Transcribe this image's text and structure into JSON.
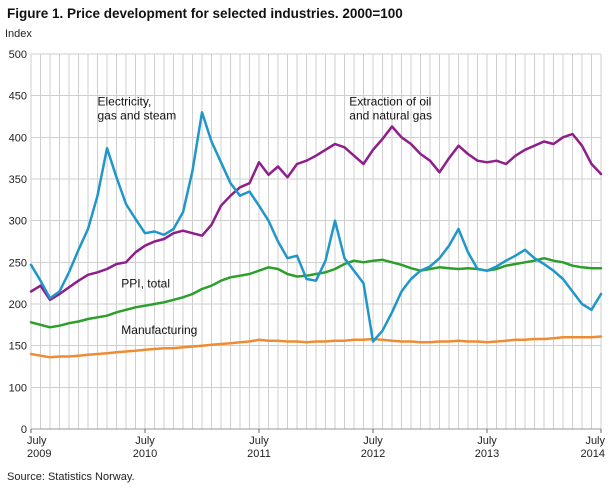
{
  "figure": {
    "title": "Figure 1. Price development for selected industries. 2000=100",
    "source": "Source: Statistics Norway."
  },
  "chart_data": {
    "type": "line",
    "title": "Figure 1. Price development for selected industries. 2000=100",
    "ylabel": "Index",
    "xlabel": "",
    "x_frequency": "monthly",
    "x_range": [
      "July 2009",
      "July 2014"
    ],
    "y_ticks": [
      500,
      450,
      400,
      350,
      300,
      250,
      200,
      150,
      100,
      0
    ],
    "y_axis_break_between": [
      0,
      100
    ],
    "grid": true,
    "legend_position": "inline-annotations",
    "x_tick_months": [
      0,
      12,
      24,
      36,
      48,
      60
    ],
    "x_ticks": [
      {
        "line1": "July",
        "line2": "2009"
      },
      {
        "line1": "July",
        "line2": "2010"
      },
      {
        "line1": "July",
        "line2": "2011"
      },
      {
        "line1": "July",
        "line2": "2012"
      },
      {
        "line1": "July",
        "line2": "2013"
      },
      {
        "line1": "July",
        "line2": "2014"
      }
    ],
    "series": [
      {
        "id": "manufacturing",
        "name": "Manufacturing",
        "color": "#ef8c33",
        "values": [
          140,
          138,
          136,
          137,
          137,
          138,
          139,
          140,
          141,
          142,
          143,
          144,
          145,
          146,
          147,
          147,
          148,
          149,
          150,
          151,
          152,
          153,
          154,
          155,
          157,
          156,
          156,
          155,
          155,
          154,
          155,
          155,
          156,
          156,
          157,
          157,
          158,
          157,
          156,
          155,
          155,
          154,
          154,
          155,
          155,
          156,
          155,
          155,
          154,
          155,
          156,
          157,
          157,
          158,
          158,
          159,
          160,
          160,
          160,
          160,
          161
        ]
      },
      {
        "id": "ppi-total",
        "name": "PPI, total",
        "color": "#2aa02a",
        "values": [
          178,
          175,
          172,
          174,
          177,
          179,
          182,
          184,
          186,
          190,
          193,
          196,
          198,
          200,
          202,
          205,
          208,
          212,
          218,
          222,
          228,
          232,
          234,
          236,
          240,
          244,
          242,
          236,
          233,
          234,
          236,
          238,
          242,
          248,
          252,
          250,
          252,
          253,
          250,
          247,
          243,
          240,
          242,
          244,
          243,
          242,
          243,
          242,
          240,
          242,
          246,
          248,
          250,
          252,
          255,
          252,
          250,
          246,
          244,
          243,
          243
        ]
      },
      {
        "id": "oil-gas-extraction",
        "name": "Extraction of oil and natural gas",
        "color": "#8e1f8a",
        "values": [
          215,
          222,
          205,
          212,
          220,
          228,
          235,
          238,
          242,
          248,
          250,
          262,
          270,
          275,
          278,
          285,
          288,
          285,
          282,
          295,
          318,
          330,
          340,
          345,
          370,
          355,
          365,
          352,
          368,
          372,
          378,
          385,
          392,
          388,
          378,
          368,
          385,
          398,
          413,
          400,
          392,
          380,
          372,
          358,
          375,
          390,
          380,
          372,
          370,
          372,
          368,
          378,
          385,
          390,
          395,
          392,
          400,
          404,
          390,
          368,
          356
        ]
      },
      {
        "id": "electricity-gas-steam",
        "name": "Electricity, gas and steam",
        "color": "#2196cb",
        "values": [
          247,
          228,
          207,
          215,
          238,
          265,
          290,
          330,
          387,
          352,
          320,
          302,
          285,
          287,
          283,
          290,
          310,
          360,
          430,
          395,
          370,
          345,
          330,
          335,
          318,
          300,
          275,
          255,
          258,
          230,
          228,
          252,
          300,
          255,
          240,
          225,
          155,
          168,
          190,
          215,
          230,
          240,
          245,
          255,
          270,
          290,
          262,
          242,
          240,
          245,
          252,
          258,
          265,
          255,
          248,
          240,
          230,
          215,
          200,
          193,
          212
        ]
      }
    ],
    "annotations": [
      {
        "id": "label-electricity",
        "lines": [
          "Electricity,",
          "gas and steam"
        ],
        "x_month": 7,
        "y_value": 438
      },
      {
        "id": "label-oil-gas",
        "lines": [
          "Extraction of oil",
          "and natural gas"
        ],
        "x_month": 33.5,
        "y_value": 438
      },
      {
        "id": "label-ppi-total",
        "lines": [
          "PPI, total"
        ],
        "x_month": 9.5,
        "y_value": 220
      },
      {
        "id": "label-manufacturing",
        "lines": [
          "Manufacturing"
        ],
        "x_month": 9.5,
        "y_value": 164
      }
    ]
  }
}
